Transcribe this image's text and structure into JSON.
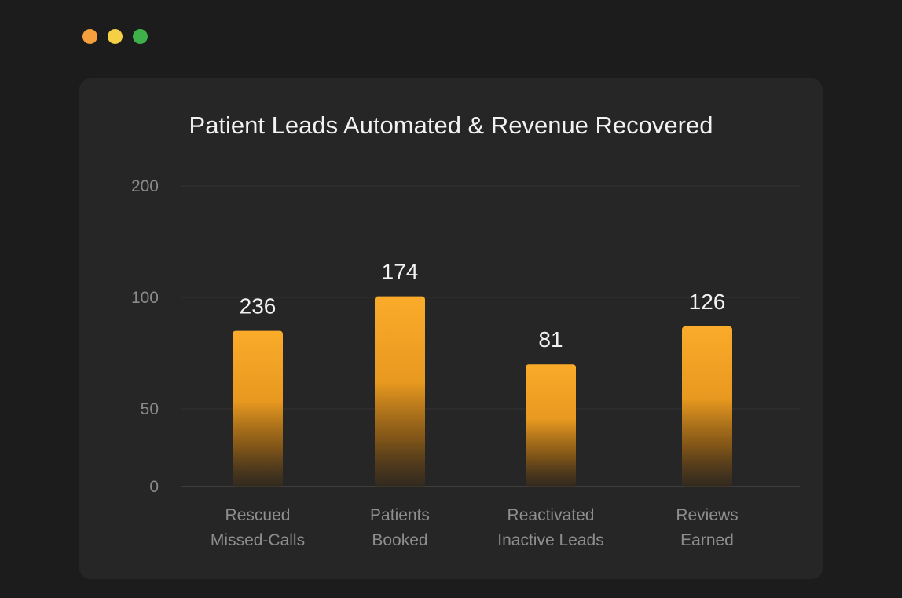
{
  "window": {
    "controls": [
      {
        "name": "close",
        "color": "#f5a03c"
      },
      {
        "name": "minimize",
        "color": "#f5cf46"
      },
      {
        "name": "maximize",
        "color": "#3fb14a"
      }
    ]
  },
  "chart_data": {
    "type": "bar",
    "title": "Patient Leads Automated & Revenue Recovered",
    "categories": [
      [
        "Rescued",
        "Missed-Calls"
      ],
      [
        "Patients",
        "Booked"
      ],
      [
        "Reactivated",
        "Inactive Leads"
      ],
      [
        "Reviews",
        "Earned"
      ]
    ],
    "values": [
      236,
      174,
      81,
      126
    ],
    "data_labels": [
      "236",
      "174",
      "81",
      "126"
    ],
    "yticks": [
      "0",
      "50",
      "100",
      "200"
    ],
    "ytick_values": [
      0,
      50,
      100,
      200
    ],
    "bar_heights_on_axis": [
      85,
      101,
      70,
      87
    ],
    "xlabel": "",
    "ylabel": "",
    "grid": true,
    "bar_color": "#f7a928"
  }
}
